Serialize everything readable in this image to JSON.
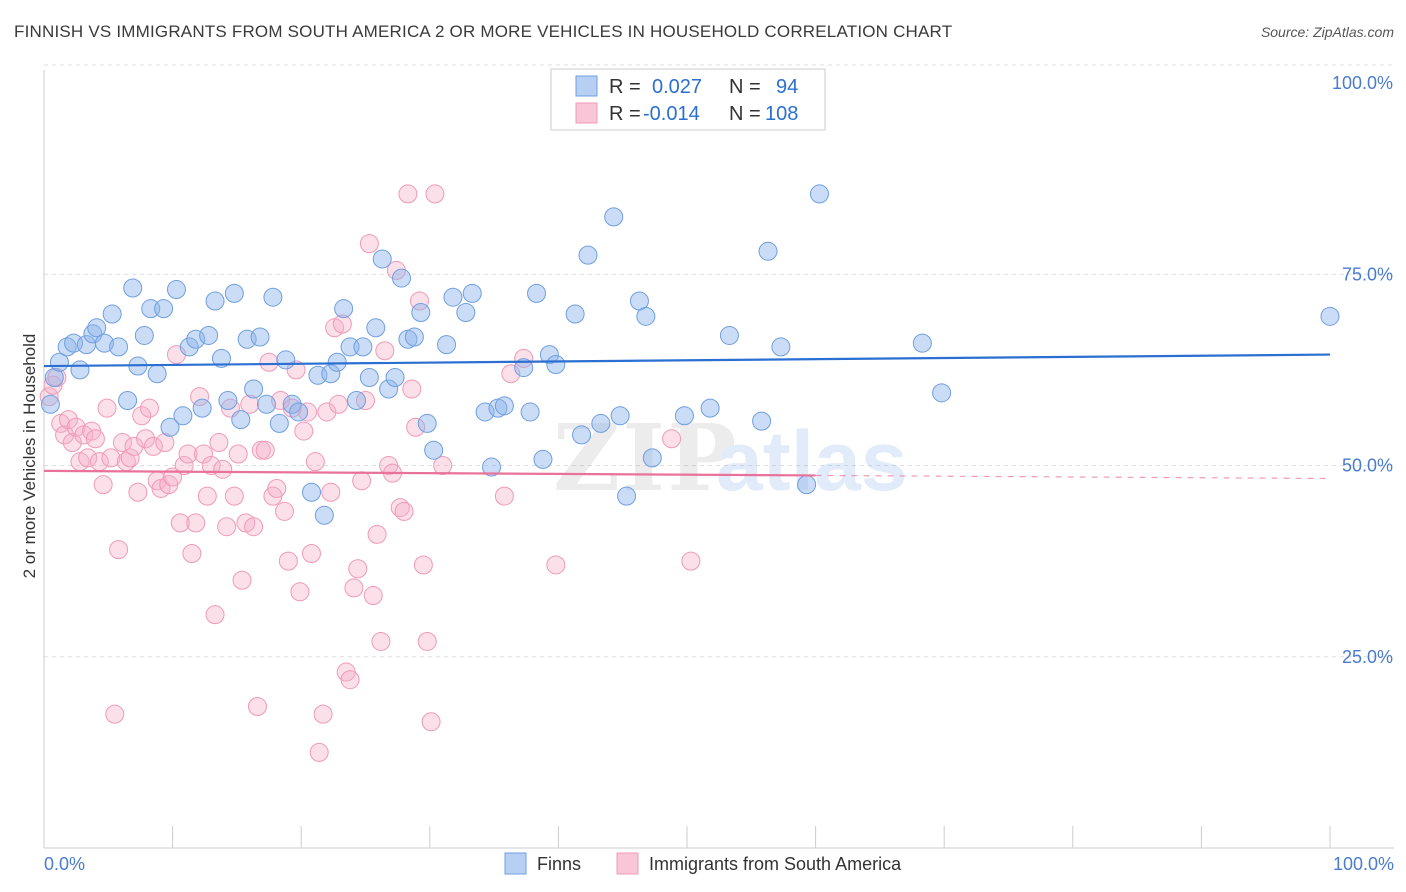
{
  "title": "FINNISH VS IMMIGRANTS FROM SOUTH AMERICA 2 OR MORE VEHICLES IN HOUSEHOLD CORRELATION CHART",
  "source": "Source: ZipAtlas.com",
  "watermark": "ZIPatlas",
  "colors": {
    "blue": "#6f9fe0",
    "blue_line": "#2a6fd1",
    "pink": "#f09ab8",
    "pink_line": "#e8729a",
    "tick_text": "#4a7bd0"
  },
  "legend": {
    "rows": [
      {
        "r_label": "R =",
        "r_value": "0.027",
        "n_label": "N =",
        "n_value": "94",
        "color": "blue"
      },
      {
        "r_label": "R =",
        "r_value": "-0.014",
        "n_label": "N =",
        "n_value": "108",
        "color": "pink"
      }
    ]
  },
  "bottom_legend": [
    {
      "label": "Finns",
      "color": "blue"
    },
    {
      "label": "Immigrants from South America",
      "color": "pink"
    }
  ],
  "chart_data": {
    "type": "scatter",
    "title": "FINNISH VS IMMIGRANTS FROM SOUTH AMERICA 2 OR MORE VEHICLES IN HOUSEHOLD CORRELATION CHART",
    "xlabel": "",
    "ylabel": "2 or more Vehicles in Household",
    "xlim": [
      0,
      100
    ],
    "ylim": [
      0,
      105
    ],
    "x_tick_labels": [
      "0.0%",
      "100.0%"
    ],
    "y_ticks": [
      25,
      50,
      75,
      100
    ],
    "y_tick_labels": [
      "25.0%",
      "50.0%",
      "75.0%",
      "100.0%"
    ],
    "grid": true,
    "series": [
      {
        "name": "Finns",
        "color": "blue",
        "trend": {
          "x": [
            0,
            100
          ],
          "y": [
            63.0,
            64.5
          ]
        },
        "points": [
          [
            0.5,
            58
          ],
          [
            0.8,
            61.5
          ],
          [
            1.2,
            63.5
          ],
          [
            1.8,
            65.5
          ],
          [
            2.3,
            66
          ],
          [
            2.8,
            62.5
          ],
          [
            3.3,
            65.8
          ],
          [
            3.8,
            67.2
          ],
          [
            4.1,
            68
          ],
          [
            4.7,
            66
          ],
          [
            5.3,
            69.8
          ],
          [
            5.8,
            65.5
          ],
          [
            6.5,
            58.5
          ],
          [
            6.9,
            73.2
          ],
          [
            7.3,
            63
          ],
          [
            7.8,
            67
          ],
          [
            8.3,
            70.5
          ],
          [
            8.8,
            62
          ],
          [
            9.3,
            70.5
          ],
          [
            9.8,
            55
          ],
          [
            10.3,
            73
          ],
          [
            10.8,
            56.5
          ],
          [
            11.3,
            65.5
          ],
          [
            11.8,
            66.5
          ],
          [
            12.3,
            57.5
          ],
          [
            12.8,
            67
          ],
          [
            13.3,
            71.5
          ],
          [
            13.8,
            64
          ],
          [
            14.3,
            58.5
          ],
          [
            14.8,
            72.5
          ],
          [
            15.3,
            56
          ],
          [
            15.8,
            66.5
          ],
          [
            16.3,
            60
          ],
          [
            16.8,
            66.8
          ],
          [
            17.3,
            58
          ],
          [
            17.8,
            72
          ],
          [
            18.3,
            55.5
          ],
          [
            18.8,
            63.8
          ],
          [
            19.3,
            58
          ],
          [
            19.8,
            57
          ],
          [
            20.8,
            46.5
          ],
          [
            21.3,
            61.8
          ],
          [
            21.8,
            43.5
          ],
          [
            22.3,
            62
          ],
          [
            22.8,
            63.5
          ],
          [
            23.3,
            70.5
          ],
          [
            23.8,
            65.5
          ],
          [
            24.3,
            58.5
          ],
          [
            24.8,
            65.5
          ],
          [
            25.3,
            61.5
          ],
          [
            25.8,
            68
          ],
          [
            26.3,
            77
          ],
          [
            26.8,
            60
          ],
          [
            27.3,
            61.5
          ],
          [
            27.8,
            74.5
          ],
          [
            28.3,
            66.5
          ],
          [
            28.8,
            66.8
          ],
          [
            29.3,
            70
          ],
          [
            29.8,
            55.5
          ],
          [
            30.3,
            52
          ],
          [
            31.3,
            65.8
          ],
          [
            31.8,
            72
          ],
          [
            32.8,
            70
          ],
          [
            33.3,
            72.5
          ],
          [
            34.3,
            57
          ],
          [
            34.8,
            49.8
          ],
          [
            35.3,
            57.5
          ],
          [
            35.8,
            57.8
          ],
          [
            37.3,
            62.8
          ],
          [
            37.8,
            57
          ],
          [
            38.3,
            72.5
          ],
          [
            38.8,
            50.8
          ],
          [
            39.3,
            64.5
          ],
          [
            39.8,
            63.2
          ],
          [
            41.3,
            69.8
          ],
          [
            41.8,
            54
          ],
          [
            42.3,
            77.5
          ],
          [
            43.3,
            55.5
          ],
          [
            44.3,
            82.5
          ],
          [
            44.8,
            56.5
          ],
          [
            45.3,
            46
          ],
          [
            46.3,
            71.5
          ],
          [
            46.8,
            69.5
          ],
          [
            47.3,
            51
          ],
          [
            49.8,
            56.5
          ],
          [
            51.8,
            57.5
          ],
          [
            53.3,
            67
          ],
          [
            55.8,
            55.8
          ],
          [
            56.3,
            78
          ],
          [
            57.3,
            65.5
          ],
          [
            59.3,
            47.5
          ],
          [
            60.3,
            85.5
          ],
          [
            68.3,
            66
          ],
          [
            69.8,
            59.5
          ],
          [
            100,
            69.5
          ]
        ]
      },
      {
        "name": "Immigrants from South America",
        "color": "pink",
        "trend": {
          "x": [
            0,
            60
          ],
          "y": [
            49.3,
            48.7
          ]
        },
        "points": [
          [
            0.4,
            59
          ],
          [
            0.7,
            60.5
          ],
          [
            1.0,
            61.5
          ],
          [
            1.3,
            55.5
          ],
          [
            1.6,
            54
          ],
          [
            1.9,
            56
          ],
          [
            2.2,
            53
          ],
          [
            2.5,
            55
          ],
          [
            2.8,
            50.5
          ],
          [
            3.1,
            54
          ],
          [
            3.4,
            51
          ],
          [
            3.7,
            54.5
          ],
          [
            4.0,
            53.5
          ],
          [
            4.3,
            50.5
          ],
          [
            4.6,
            47.5
          ],
          [
            4.9,
            57.5
          ],
          [
            5.2,
            51
          ],
          [
            5.5,
            17.5
          ],
          [
            5.8,
            39
          ],
          [
            6.1,
            53
          ],
          [
            6.4,
            50.5
          ],
          [
            6.7,
            51
          ],
          [
            7.0,
            52.5
          ],
          [
            7.3,
            46.5
          ],
          [
            7.6,
            56.5
          ],
          [
            7.9,
            53.5
          ],
          [
            8.2,
            57.5
          ],
          [
            8.5,
            52.5
          ],
          [
            8.8,
            48
          ],
          [
            9.1,
            47
          ],
          [
            9.4,
            53
          ],
          [
            9.7,
            47.5
          ],
          [
            10.0,
            48.5
          ],
          [
            10.3,
            64.5
          ],
          [
            10.6,
            42.5
          ],
          [
            10.9,
            50
          ],
          [
            11.2,
            51.5
          ],
          [
            11.5,
            38.5
          ],
          [
            11.8,
            42.5
          ],
          [
            12.1,
            59
          ],
          [
            12.4,
            51.5
          ],
          [
            12.7,
            46
          ],
          [
            13.0,
            50
          ],
          [
            13.3,
            30.5
          ],
          [
            13.6,
            53
          ],
          [
            13.9,
            49.5
          ],
          [
            14.2,
            42
          ],
          [
            14.5,
            57.5
          ],
          [
            14.8,
            46
          ],
          [
            15.1,
            51.5
          ],
          [
            15.4,
            35
          ],
          [
            15.7,
            42.5
          ],
          [
            16.0,
            58
          ],
          [
            16.3,
            42
          ],
          [
            16.6,
            18.5
          ],
          [
            16.9,
            52
          ],
          [
            17.2,
            52
          ],
          [
            17.5,
            63.5
          ],
          [
            17.8,
            46
          ],
          [
            18.1,
            47
          ],
          [
            18.4,
            58.5
          ],
          [
            18.7,
            44
          ],
          [
            19.0,
            37.5
          ],
          [
            19.3,
            57.5
          ],
          [
            19.6,
            62.5
          ],
          [
            19.9,
            33.5
          ],
          [
            20.2,
            54.5
          ],
          [
            20.5,
            57
          ],
          [
            20.8,
            38.5
          ],
          [
            21.1,
            50.5
          ],
          [
            21.4,
            12.5
          ],
          [
            21.7,
            17.5
          ],
          [
            22.0,
            57
          ],
          [
            22.3,
            46.5
          ],
          [
            22.6,
            68
          ],
          [
            22.9,
            58
          ],
          [
            23.2,
            68.5
          ],
          [
            23.5,
            23
          ],
          [
            23.8,
            22
          ],
          [
            24.1,
            34
          ],
          [
            24.4,
            36.5
          ],
          [
            24.7,
            48
          ],
          [
            25.0,
            58.5
          ],
          [
            25.3,
            79
          ],
          [
            25.6,
            33
          ],
          [
            25.9,
            41
          ],
          [
            26.2,
            27
          ],
          [
            26.5,
            65
          ],
          [
            26.8,
            50
          ],
          [
            27.1,
            49
          ],
          [
            27.4,
            75.5
          ],
          [
            27.7,
            44.5
          ],
          [
            28.0,
            44
          ],
          [
            28.3,
            85.5
          ],
          [
            28.6,
            60
          ],
          [
            28.9,
            55
          ],
          [
            29.2,
            71.5
          ],
          [
            29.5,
            37
          ],
          [
            29.8,
            27
          ],
          [
            30.1,
            16.5
          ],
          [
            30.4,
            85.5
          ],
          [
            31.0,
            50
          ],
          [
            35.8,
            46
          ],
          [
            36.3,
            62
          ],
          [
            37.3,
            64
          ],
          [
            39.8,
            37
          ],
          [
            48.8,
            53.5
          ],
          [
            50.3,
            37.5
          ]
        ]
      }
    ]
  }
}
